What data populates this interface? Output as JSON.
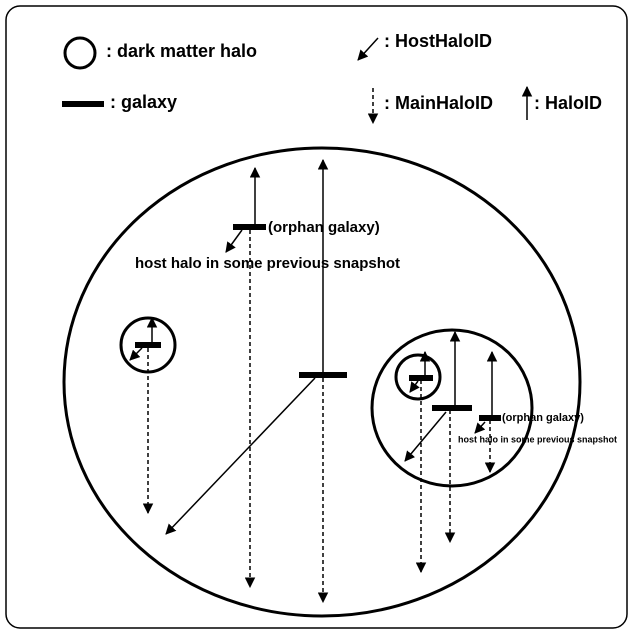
{
  "legend": {
    "halo": ": dark matter halo",
    "galaxy": ": galaxy",
    "host": ": HostHaloID",
    "main": ": MainHaloID",
    "halo_id": ": HaloID"
  },
  "annotations": [
    {
      "label": "(orphan galaxy)",
      "note": "host halo in some previous snapshot"
    },
    {
      "label": "(orphan galaxy)",
      "note": "host halo in some previous snapshot"
    }
  ]
}
